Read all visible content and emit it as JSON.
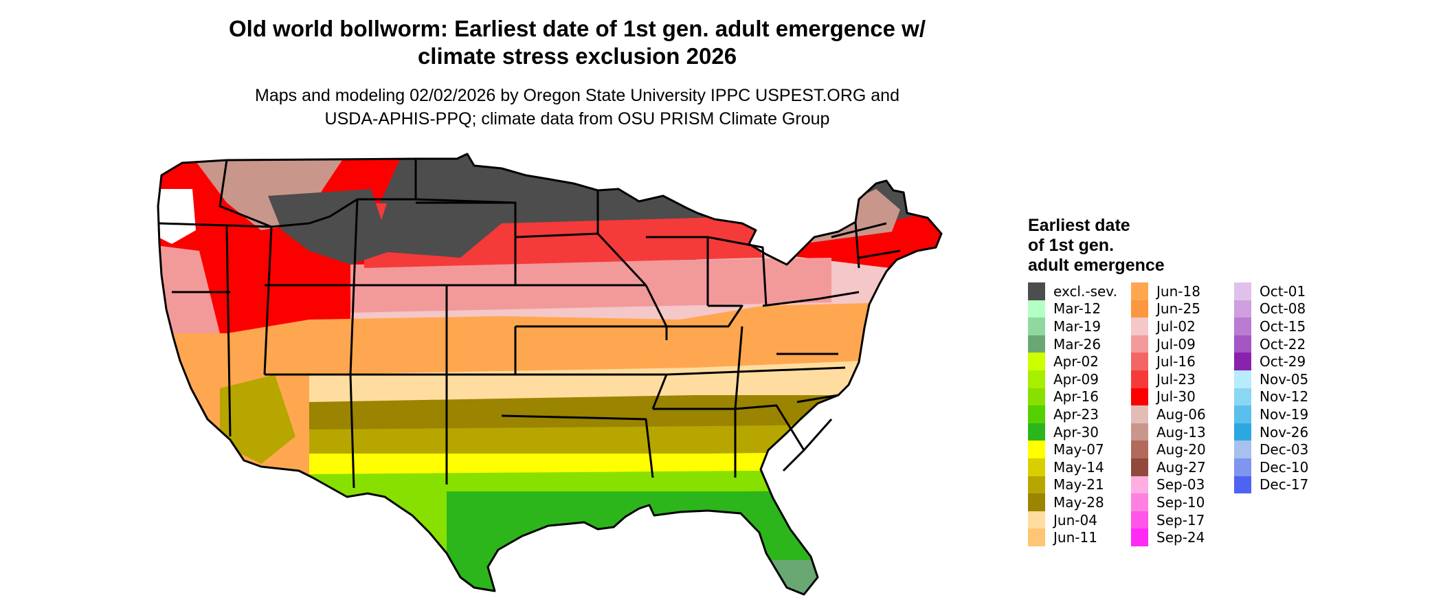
{
  "title": {
    "line1": "Old world bollworm: Earliest date of 1st gen. adult emergence w/",
    "line2": "climate stress exclusion 2026"
  },
  "subtitle": {
    "line1": "Maps and modeling 02/02/2026 by Oregon State University IPPC USPEST.ORG and",
    "line2": "USDA-APHIS-PPQ; climate data from OSU PRISM Climate Group"
  },
  "legend": {
    "title_line1": "Earliest date",
    "title_line2": "of 1st gen.",
    "title_line3": "adult emergence",
    "columns": [
      [
        {
          "label": "excl.-sev.",
          "color": "#4d4d4d"
        },
        {
          "label": "Mar-12",
          "color": "#b3ffc4"
        },
        {
          "label": "Mar-19",
          "color": "#8fd9a0"
        },
        {
          "label": "Mar-26",
          "color": "#6aa873"
        },
        {
          "label": "Apr-02",
          "color": "#ccff00"
        },
        {
          "label": "Apr-09",
          "color": "#a6ef00"
        },
        {
          "label": "Apr-16",
          "color": "#88e000"
        },
        {
          "label": "Apr-23",
          "color": "#55d000"
        },
        {
          "label": "Apr-30",
          "color": "#2db51c"
        },
        {
          "label": "May-07",
          "color": "#ffff00"
        },
        {
          "label": "May-14",
          "color": "#d9cf00"
        },
        {
          "label": "May-21",
          "color": "#b7a600"
        },
        {
          "label": "May-28",
          "color": "#9a8400"
        },
        {
          "label": "Jun-04",
          "color": "#ffdda0"
        },
        {
          "label": "Jun-11",
          "color": "#ffc474"
        }
      ],
      [
        {
          "label": "Jun-18",
          "color": "#ffa750"
        },
        {
          "label": "Jun-25",
          "color": "#fb9740"
        },
        {
          "label": "Jul-02",
          "color": "#f4c7c8"
        },
        {
          "label": "Jul-09",
          "color": "#f29a9a"
        },
        {
          "label": "Jul-16",
          "color": "#f46565"
        },
        {
          "label": "Jul-23",
          "color": "#f53a3a"
        },
        {
          "label": "Jul-30",
          "color": "#fc0000"
        },
        {
          "label": "Aug-06",
          "color": "#e3bcb8"
        },
        {
          "label": "Aug-13",
          "color": "#c9968c"
        },
        {
          "label": "Aug-20",
          "color": "#b26a5b"
        },
        {
          "label": "Aug-27",
          "color": "#93483b"
        },
        {
          "label": "Sep-03",
          "color": "#ffaee3"
        },
        {
          "label": "Sep-10",
          "color": "#ff80e0"
        },
        {
          "label": "Sep-17",
          "color": "#ff55ea"
        },
        {
          "label": "Sep-24",
          "color": "#ff2af5"
        }
      ],
      [
        {
          "label": "Oct-01",
          "color": "#e0c1eb"
        },
        {
          "label": "Oct-08",
          "color": "#cf9fdf"
        },
        {
          "label": "Oct-15",
          "color": "#b97cd2"
        },
        {
          "label": "Oct-22",
          "color": "#a456c4"
        },
        {
          "label": "Oct-29",
          "color": "#8a22ae"
        },
        {
          "label": "Nov-05",
          "color": "#b6ecfc"
        },
        {
          "label": "Nov-12",
          "color": "#8ad6f5"
        },
        {
          "label": "Nov-19",
          "color": "#5bbfee"
        },
        {
          "label": "Nov-26",
          "color": "#2da7e0"
        },
        {
          "label": "Dec-03",
          "color": "#a8c0ee"
        },
        {
          "label": "Dec-10",
          "color": "#7f95ef"
        },
        {
          "label": "Dec-17",
          "color": "#4f63f2"
        }
      ]
    ]
  }
}
